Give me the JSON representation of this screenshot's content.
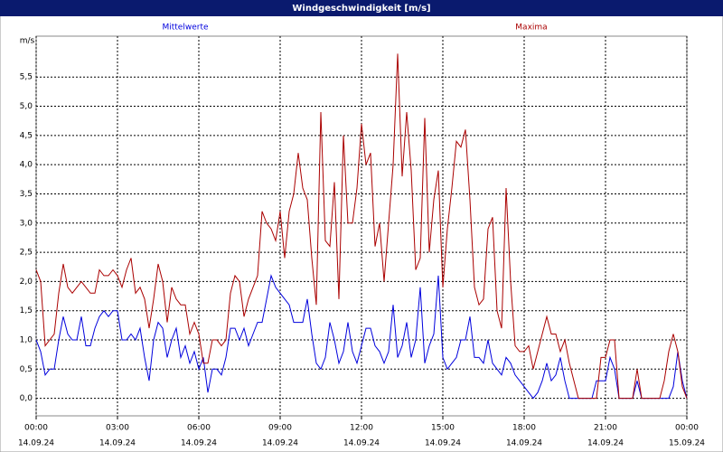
{
  "chart_data": {
    "type": "line",
    "title": "Windgeschwindigkeit [m/s]",
    "y_label": "m/s",
    "x": [
      0,
      10,
      20,
      30,
      40,
      50,
      60,
      70,
      80,
      90,
      100,
      110,
      120,
      130,
      140,
      150,
      160,
      170,
      180,
      190,
      200,
      210,
      220,
      230,
      240,
      250,
      260,
      270,
      280,
      290,
      300,
      310,
      320,
      330,
      340,
      350,
      360,
      370,
      380,
      390,
      400,
      410,
      420,
      430,
      440,
      450,
      460,
      470,
      480,
      490,
      500,
      510,
      520,
      530,
      540,
      550,
      560,
      570,
      580,
      590,
      600,
      610,
      620,
      630,
      640,
      650,
      660,
      670,
      680,
      690,
      700,
      710,
      720,
      730,
      740,
      750,
      760,
      770,
      780,
      790,
      800,
      810,
      820,
      830,
      840,
      850,
      860,
      870,
      880,
      890,
      900,
      910,
      920,
      930,
      940,
      950,
      960,
      970,
      980,
      990,
      1000,
      1010,
      1020,
      1030,
      1040,
      1050,
      1060,
      1070,
      1080,
      1090,
      1100,
      1110,
      1120,
      1130,
      1140,
      1150,
      1160,
      1170,
      1180,
      1190,
      1200,
      1210,
      1220,
      1230,
      1240,
      1250,
      1260,
      1270,
      1280,
      1290,
      1300,
      1310,
      1320,
      1330,
      1340,
      1350,
      1360,
      1370,
      1380,
      1390,
      1400,
      1410,
      1420,
      1430,
      1440
    ],
    "series": [
      {
        "name": "Mittelwerte",
        "color": "#0000dd",
        "values": [
          1.0,
          0.8,
          0.4,
          0.5,
          0.5,
          1.0,
          1.4,
          1.1,
          1.0,
          1.0,
          1.4,
          0.9,
          0.9,
          1.2,
          1.4,
          1.5,
          1.4,
          1.5,
          1.5,
          1.0,
          1.0,
          1.1,
          1.0,
          1.2,
          0.7,
          0.3,
          1.0,
          1.3,
          1.2,
          0.7,
          1.0,
          1.2,
          0.7,
          0.9,
          0.6,
          0.8,
          0.5,
          0.7,
          0.1,
          0.5,
          0.5,
          0.4,
          0.7,
          1.2,
          1.2,
          1.0,
          1.2,
          0.9,
          1.1,
          1.3,
          1.3,
          1.7,
          2.1,
          1.9,
          1.8,
          1.7,
          1.6,
          1.3,
          1.3,
          1.3,
          1.7,
          1.1,
          0.6,
          0.5,
          0.7,
          1.3,
          1.0,
          0.6,
          0.8,
          1.3,
          0.8,
          0.6,
          0.9,
          1.2,
          1.2,
          0.9,
          0.8,
          0.6,
          0.8,
          1.6,
          0.7,
          0.9,
          1.3,
          0.7,
          1.0,
          1.9,
          0.6,
          0.9,
          1.1,
          2.1,
          0.7,
          0.5,
          0.6,
          0.7,
          1.0,
          1.0,
          1.4,
          0.7,
          0.7,
          0.6,
          1.0,
          0.6,
          0.5,
          0.4,
          0.7,
          0.6,
          0.4,
          0.3,
          0.2,
          0.1,
          0.0,
          0.1,
          0.3,
          0.6,
          0.3,
          0.4,
          0.7,
          0.3,
          0.0,
          0.0,
          0.0,
          0.0,
          0.0,
          0.0,
          0.3,
          0.3,
          0.3,
          0.7,
          0.5,
          0.0,
          0.0,
          0.0,
          0.0,
          0.3,
          0.0,
          0.0,
          0.0,
          0.0,
          0.0,
          0.0,
          0.0,
          0.2,
          0.8,
          0.3,
          0.0
        ]
      },
      {
        "name": "Maxima",
        "color": "#aa0000",
        "values": [
          2.2,
          2.0,
          0.9,
          1.0,
          1.1,
          1.8,
          2.3,
          1.9,
          1.8,
          1.9,
          2.0,
          1.9,
          1.8,
          1.8,
          2.2,
          2.1,
          2.1,
          2.2,
          2.1,
          1.9,
          2.2,
          2.4,
          1.8,
          1.9,
          1.7,
          1.2,
          1.7,
          2.3,
          2.0,
          1.3,
          1.9,
          1.7,
          1.6,
          1.6,
          1.1,
          1.3,
          1.1,
          0.6,
          0.6,
          1.0,
          1.0,
          0.9,
          1.0,
          1.8,
          2.1,
          2.0,
          1.4,
          1.7,
          1.9,
          2.1,
          3.2,
          3.0,
          2.9,
          2.7,
          3.2,
          2.4,
          3.2,
          3.5,
          4.2,
          3.6,
          3.4,
          2.4,
          1.6,
          4.9,
          2.7,
          2.6,
          3.7,
          1.7,
          4.5,
          3.0,
          3.0,
          3.6,
          4.7,
          4.0,
          4.2,
          2.6,
          3.0,
          2.0,
          3.0,
          4.0,
          5.9,
          3.8,
          4.9,
          3.9,
          2.2,
          2.4,
          4.8,
          2.5,
          3.4,
          3.9,
          1.9,
          2.9,
          3.6,
          4.4,
          4.3,
          4.6,
          3.4,
          1.9,
          1.6,
          1.7,
          2.9,
          3.1,
          1.5,
          1.2,
          3.6,
          2.0,
          0.9,
          0.8,
          0.8,
          0.9,
          0.5,
          0.8,
          1.1,
          1.4,
          1.1,
          1.1,
          0.8,
          1.0,
          0.6,
          0.3,
          0.0,
          0.0,
          0.0,
          0.0,
          0.0,
          0.7,
          0.7,
          1.0,
          1.0,
          0.0,
          0.0,
          0.0,
          0.0,
          0.5,
          0.0,
          0.0,
          0.0,
          0.0,
          0.0,
          0.3,
          0.8,
          1.1,
          0.8,
          0.2,
          0.0
        ]
      }
    ],
    "xlim": [
      0,
      1440
    ],
    "xticks": [
      {
        "value": 0,
        "label": "00:00"
      },
      {
        "value": 180,
        "label": "03:00"
      },
      {
        "value": 360,
        "label": "06:00"
      },
      {
        "value": 540,
        "label": "09:00"
      },
      {
        "value": 720,
        "label": "12:00"
      },
      {
        "value": 900,
        "label": "15:00"
      },
      {
        "value": 1080,
        "label": "18:00"
      },
      {
        "value": 1260,
        "label": "21:00"
      },
      {
        "value": 1440,
        "label": "00:00"
      }
    ],
    "xtick_dates": [
      "14.09.24",
      "14.09.24",
      "14.09.24",
      "14.09.24",
      "14.09.24",
      "14.09.24",
      "14.09.24",
      "14.09.24",
      "15.09.24"
    ],
    "ylim": [
      -0.3,
      6.2
    ],
    "yticks": [
      {
        "value": 0,
        "label": "0,0"
      },
      {
        "value": 0.5,
        "label": "0,5"
      },
      {
        "value": 1,
        "label": "1,0"
      },
      {
        "value": 1.5,
        "label": "1,5"
      },
      {
        "value": 2,
        "label": "2,0"
      },
      {
        "value": 2.5,
        "label": "2,5"
      },
      {
        "value": 3,
        "label": "3,0"
      },
      {
        "value": 3.5,
        "label": "3,5"
      },
      {
        "value": 4,
        "label": "4,0"
      },
      {
        "value": 4.5,
        "label": "4,5"
      },
      {
        "value": 5,
        "label": "5,0"
      },
      {
        "value": 5.5,
        "label": "5,5"
      }
    ],
    "grid": true
  }
}
